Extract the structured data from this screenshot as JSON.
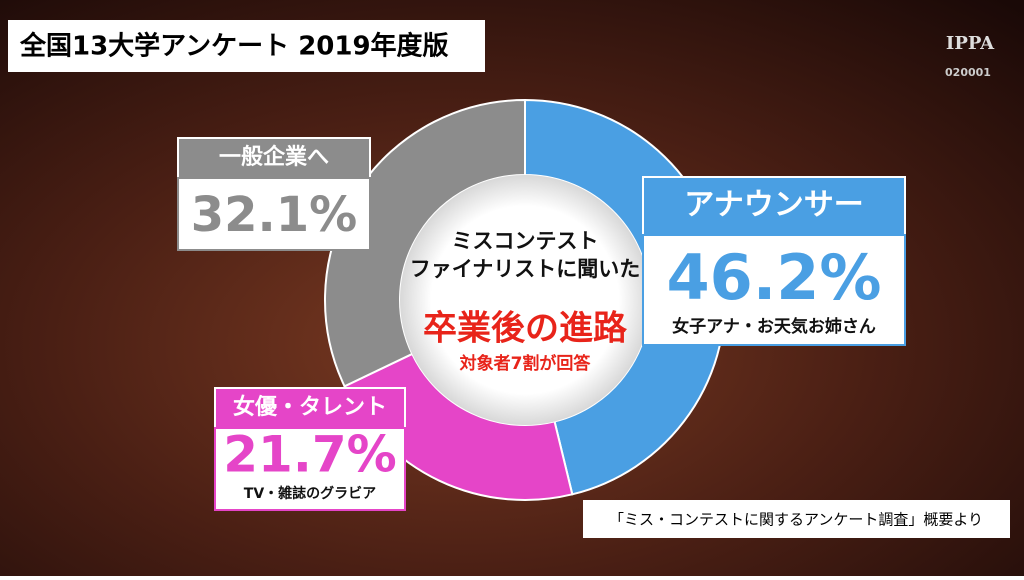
{
  "header": {
    "title": "全国13大学アンケート 2019年度版"
  },
  "logo": {
    "name": "IPPA",
    "code": "020001"
  },
  "chart_data": {
    "type": "pie",
    "donut": true,
    "subtitle": [
      "ミスコンテスト",
      "ファイナリストに聞いた"
    ],
    "title": "卒業後の進路",
    "note": "対象者7割が回答",
    "categories": [
      "アナウンサー",
      "女優・タレント",
      "一般企業へ"
    ],
    "values": [
      46.2,
      21.7,
      32.1
    ],
    "value_labels": [
      "46.2%",
      "21.7%",
      "32.1%"
    ],
    "descriptions": [
      "女子アナ・お天気お姉さん",
      "TV・雑誌のグラビア",
      null
    ],
    "colors": [
      "#4a9fe3",
      "#e545c8",
      "#8c8c8c"
    ]
  },
  "source": "「ミス・コンテストに関するアンケート調査」概要より"
}
